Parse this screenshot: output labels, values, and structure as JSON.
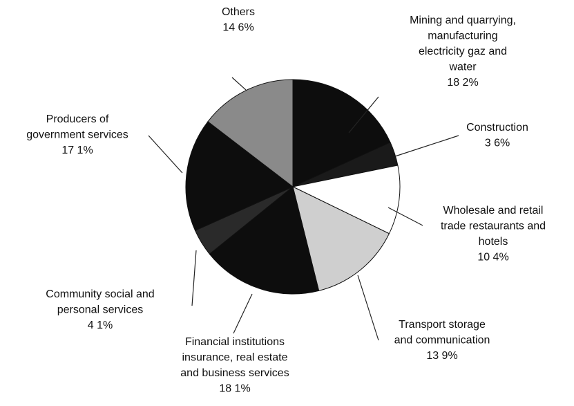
{
  "chart_data": {
    "type": "pie",
    "categories": [
      "Mining and quarrying,\nmanufacturing\nelectricity  gaz and\nwater",
      "Construction",
      "Wholesale and retail\ntrade  restaurants and\nhotels",
      "Transport  storage\nand communication",
      "Financial institutions\ninsurance, real estate\nand business services",
      "Community social and\npersonal services",
      "Producers of\ngovernment services",
      "Others"
    ],
    "values": [
      18.2,
      3.6,
      10.4,
      13.9,
      18.1,
      4.1,
      17.1,
      14.6
    ],
    "value_labels": [
      "18 2%",
      "3 6%",
      "10 4%",
      "13 9%",
      "18 1%",
      "4 1%",
      "17 1%",
      "14 6%"
    ],
    "colors": [
      "#0d0d0d",
      "#1a1a1a",
      "#ffffff",
      "#cfcfcf",
      "#0d0d0d",
      "#2a2a2a",
      "#0d0d0d",
      "#8a8a8a"
    ]
  }
}
